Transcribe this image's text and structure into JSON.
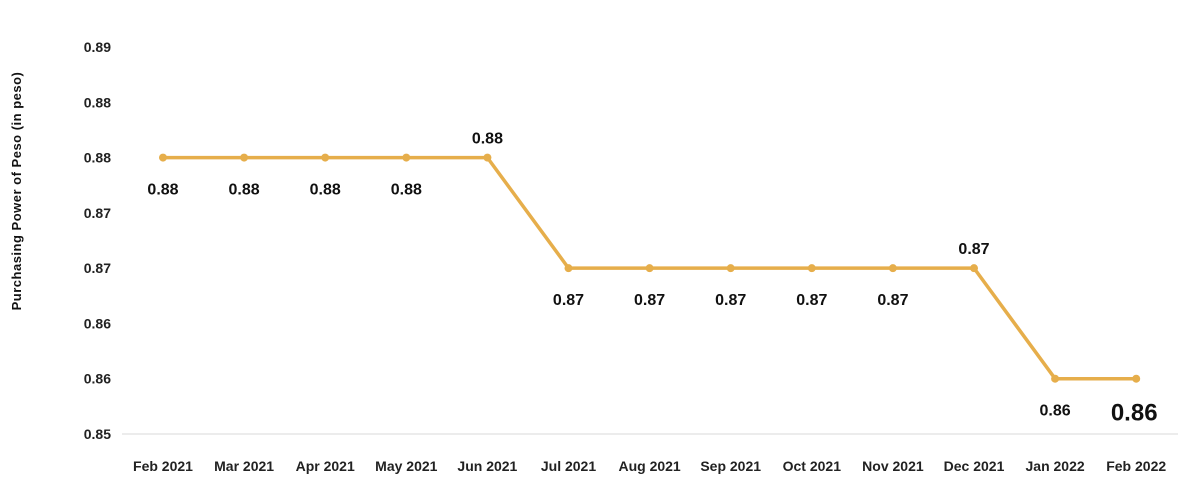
{
  "chart_data": {
    "type": "line",
    "title": "",
    "xlabel": "",
    "ylabel": "Purchasing Power of Peso (in peso)",
    "categories": [
      "Feb 2021",
      "Mar 2021",
      "Apr 2021",
      "May 2021",
      "Jun 2021",
      "Jul 2021",
      "Aug 2021",
      "Sep 2021",
      "Oct 2021",
      "Nov 2021",
      "Dec 2021",
      "Jan 2022",
      "Feb 2022"
    ],
    "series": [
      {
        "values": [
          0.88,
          0.88,
          0.88,
          0.88,
          0.88,
          0.87,
          0.87,
          0.87,
          0.87,
          0.87,
          0.87,
          0.86,
          0.86
        ],
        "labels": [
          "0.88",
          "0.88",
          "0.88",
          "0.88",
          "0.88",
          "0.87",
          "0.87",
          "0.87",
          "0.87",
          "0.87",
          "0.87",
          "0.86",
          "0.86"
        ],
        "label_positions": [
          "below",
          "below",
          "below",
          "below",
          "above",
          "below",
          "below",
          "below",
          "below",
          "below",
          "above",
          "below",
          "below"
        ],
        "color": "#E6AE4B"
      }
    ],
    "highlight": {
      "index": 12,
      "color": "#E02020"
    },
    "y_ticks": [
      {
        "value": 0.89,
        "label": "0.89"
      },
      {
        "value": 0.885,
        "label": "0.88"
      },
      {
        "value": 0.88,
        "label": "0.88"
      },
      {
        "value": 0.875,
        "label": "0.87"
      },
      {
        "value": 0.87,
        "label": "0.87"
      },
      {
        "value": 0.865,
        "label": "0.86"
      },
      {
        "value": 0.86,
        "label": "0.86"
      },
      {
        "value": 0.855,
        "label": "0.85"
      }
    ],
    "ylim": [
      0.855,
      0.89
    ],
    "grid": false,
    "legend": "none",
    "axis_color": "#D9D9D9"
  }
}
